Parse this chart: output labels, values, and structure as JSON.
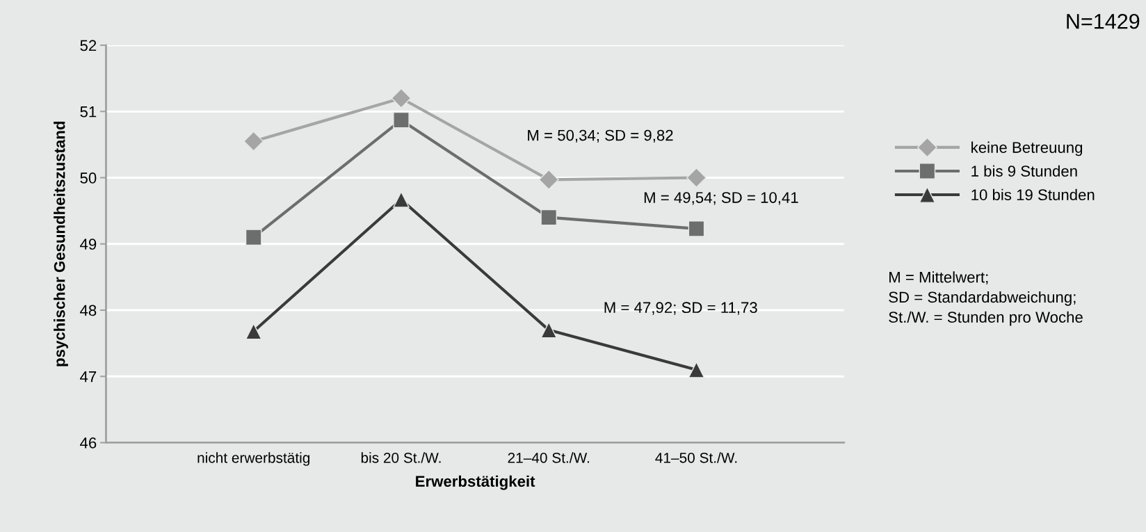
{
  "chart_data": {
    "type": "line",
    "xlabel": "Erwerbstätigkeit",
    "ylabel": "psychischer Gesundheitszustand",
    "categories": [
      "nicht erwerbstätig",
      "bis 20 St./W.",
      "21–40 St./W.",
      "41–50 St./W."
    ],
    "series": [
      {
        "name": "keine Betreuung",
        "color": "#a5a5a5",
        "marker": "diamond",
        "values": [
          50.55,
          51.2,
          49.97,
          50.0
        ]
      },
      {
        "name": "1 bis 9 Stunden",
        "color": "#6b6e6d",
        "marker": "square",
        "values": [
          49.1,
          50.87,
          49.4,
          49.23
        ]
      },
      {
        "name": "10 bis 19 Stunden",
        "color": "#3a3a3a",
        "marker": "triangle",
        "values": [
          47.68,
          49.67,
          47.7,
          47.1
        ]
      }
    ],
    "ylim": [
      46,
      52
    ],
    "yticks": [
      46,
      47,
      48,
      49,
      50,
      51,
      52
    ],
    "grid": "y",
    "legend": "right",
    "annotations": [
      "M = 50,34; SD = 9,82",
      "M = 49,54; SD = 10,41",
      "M = 47,92; SD = 11,73",
      "M = Mittelwert;\nSD = Standardabweichung;\nSt./W. = Stunden pro Woche",
      "N=1429"
    ]
  }
}
